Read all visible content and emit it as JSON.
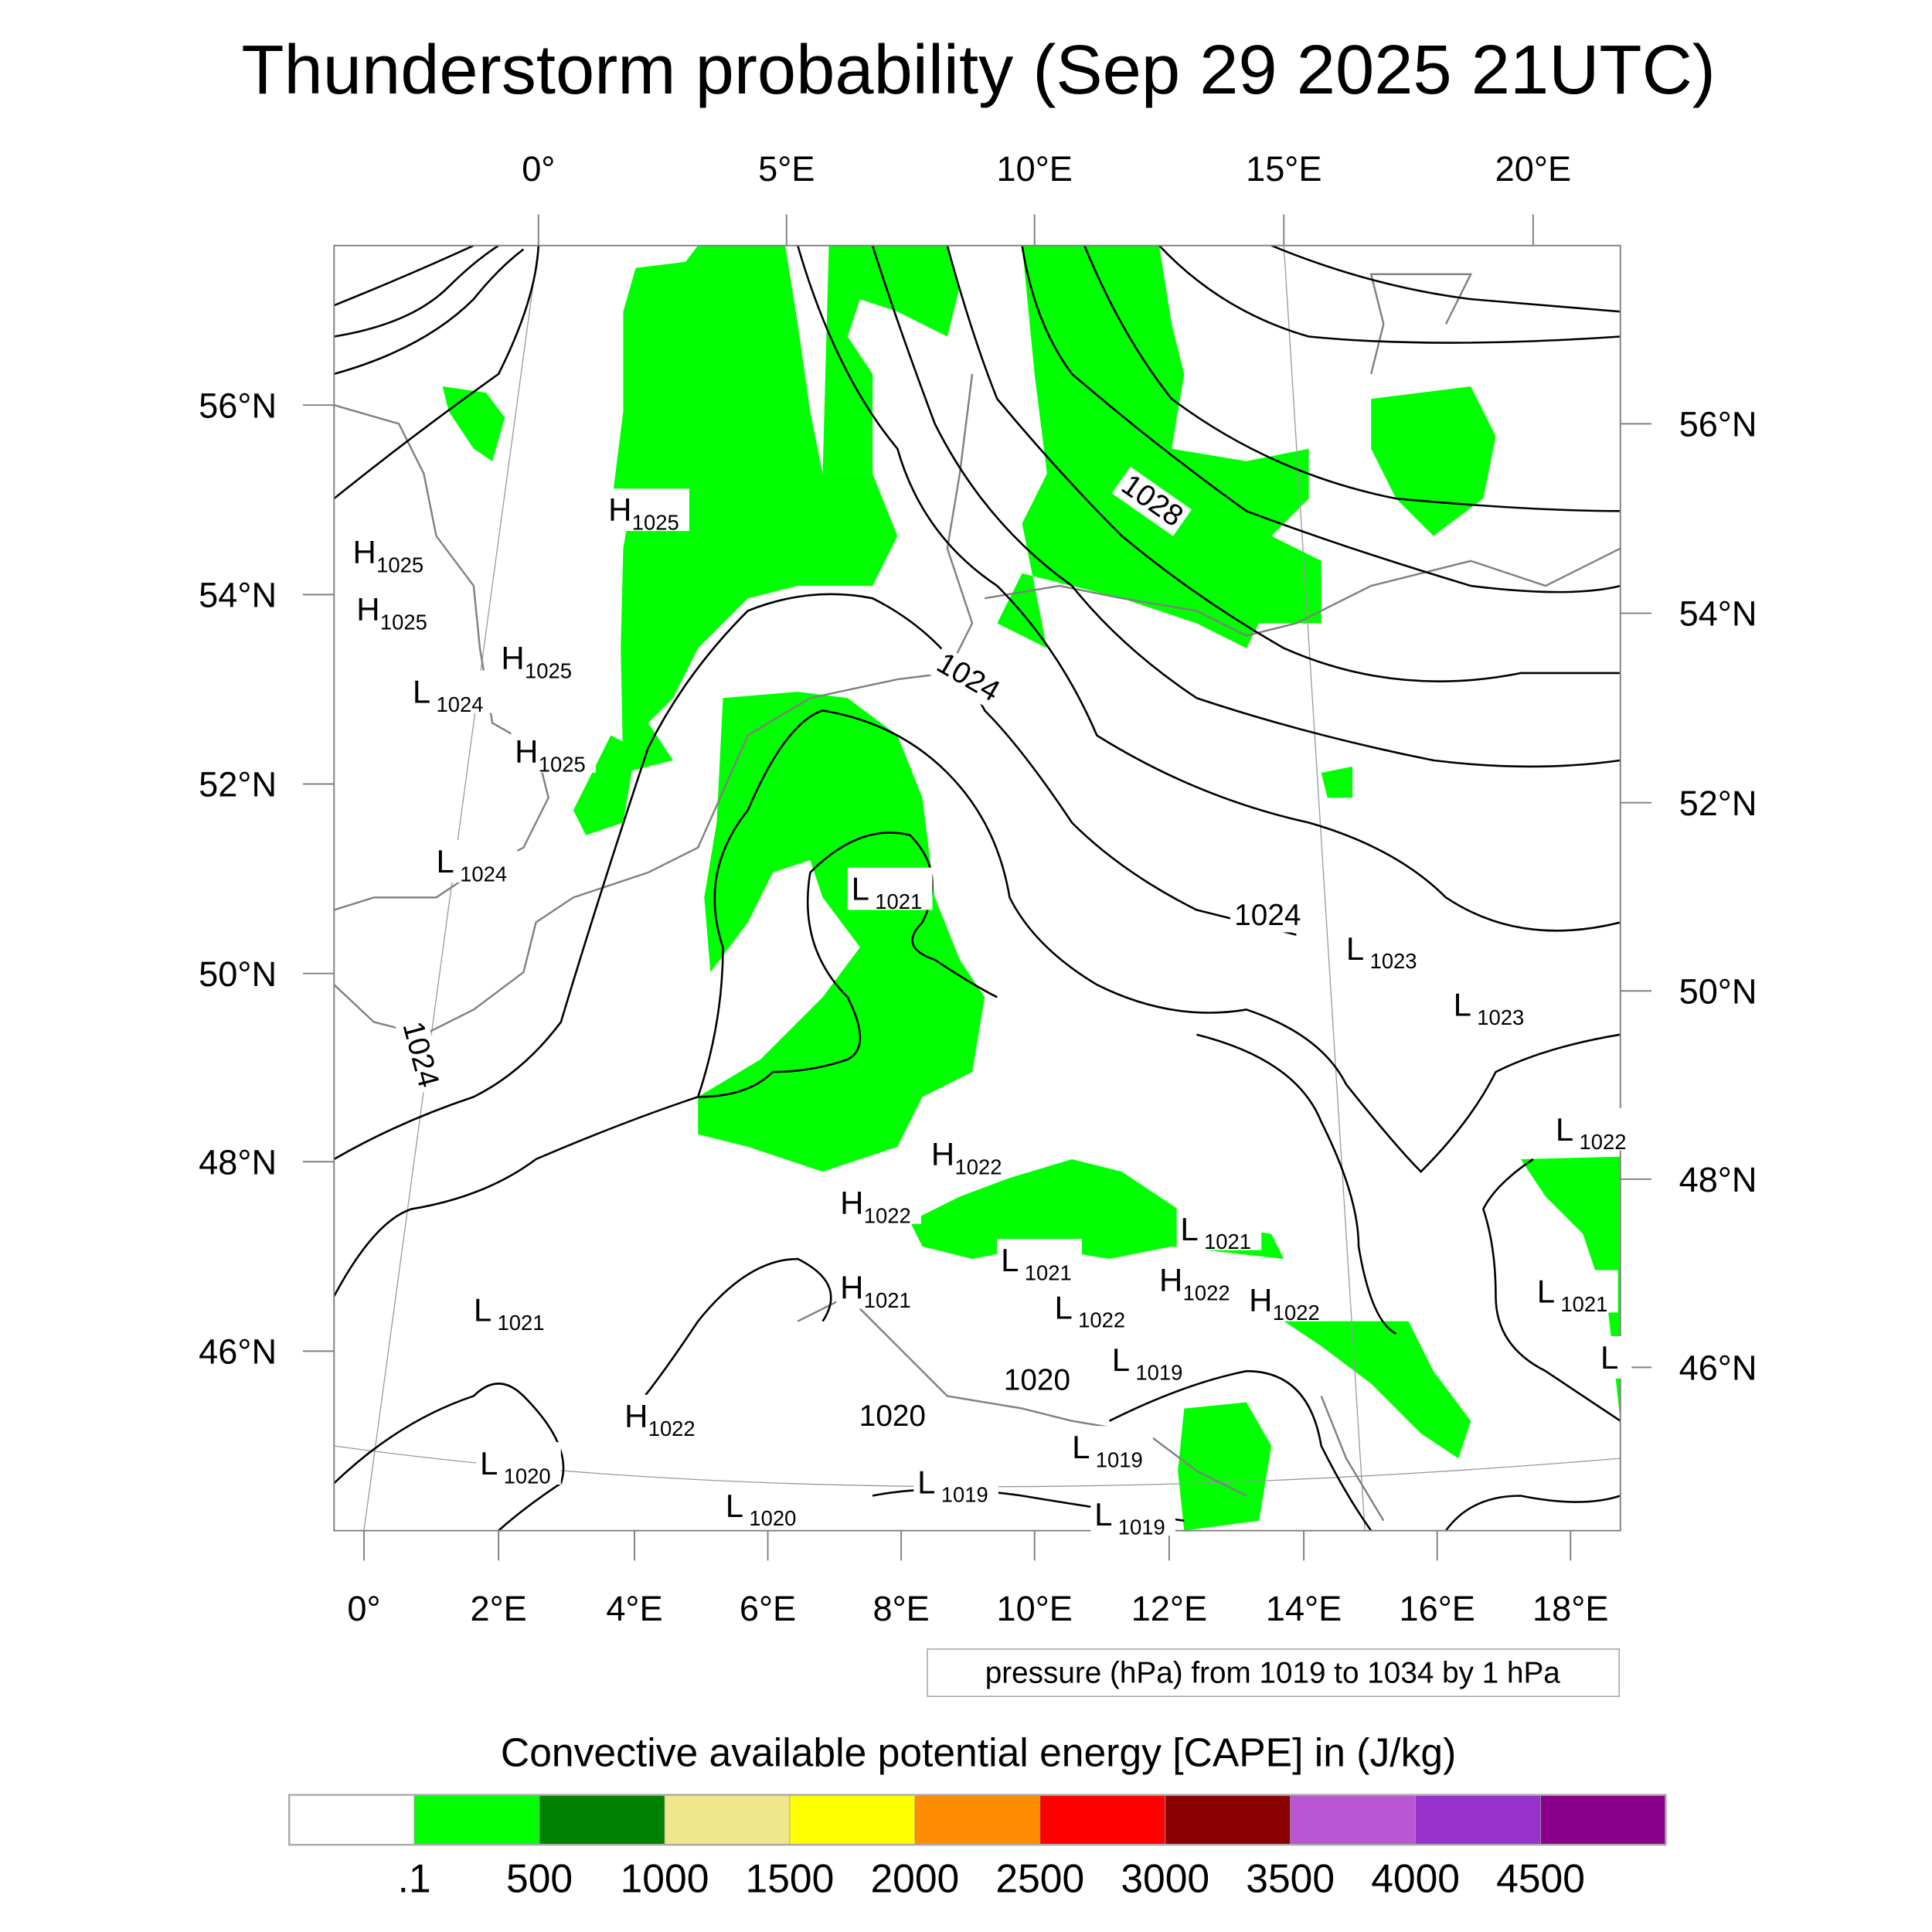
{
  "title": "Thunderstorm probability (Sep 29 2025 21UTC)",
  "axes": {
    "top": [
      "0°",
      "5°E",
      "10°E",
      "15°E",
      "20°E"
    ],
    "bottom": [
      "0°",
      "2°E",
      "4°E",
      "6°E",
      "8°E",
      "10°E",
      "12°E",
      "14°E",
      "16°E",
      "18°E"
    ],
    "left": [
      "56°N",
      "54°N",
      "52°N",
      "50°N",
      "48°N",
      "46°N"
    ],
    "right": [
      "56°N",
      "54°N",
      "52°N",
      "50°N",
      "48°N",
      "46°N"
    ]
  },
  "pressure_labels": [
    {
      "letter": "H",
      "value": "1025"
    },
    {
      "letter": "H",
      "value": "1025"
    },
    {
      "letter": "H",
      "value": "1025"
    },
    {
      "letter": "H",
      "value": "1025"
    },
    {
      "letter": "L",
      "value": "1024"
    },
    {
      "letter": "H",
      "value": "1025"
    },
    {
      "letter": "L",
      "value": "1024"
    },
    {
      "letter": "L",
      "value": "1021"
    },
    {
      "letter": "L",
      "value": "1023"
    },
    {
      "letter": "L",
      "value": "1023"
    },
    {
      "letter": "L",
      "value": "1022"
    },
    {
      "letter": "H",
      "value": "1022"
    },
    {
      "letter": "H",
      "value": "1022"
    },
    {
      "letter": "L",
      "value": "1021"
    },
    {
      "letter": "L",
      "value": "1021"
    },
    {
      "letter": "H",
      "value": "1021"
    },
    {
      "letter": "L",
      "value": "1022"
    },
    {
      "letter": "H",
      "value": "1022"
    },
    {
      "letter": "H",
      "value": "1022"
    },
    {
      "letter": "L",
      "value": "1021"
    },
    {
      "letter": "L",
      "value": "1021"
    },
    {
      "letter": "L",
      "value": "1019"
    },
    {
      "letter": "H",
      "value": "1022"
    },
    {
      "letter": "L",
      "value": "1020"
    },
    {
      "letter": "L",
      "value": "1019"
    },
    {
      "letter": "L",
      "value": "1019"
    },
    {
      "letter": "L",
      "value": "1020"
    },
    {
      "letter": "L",
      "value": "1019"
    },
    {
      "letter": "L",
      "value": ""
    }
  ],
  "contour_labels": [
    "1028",
    "1024",
    "1024",
    "1024",
    "1020",
    "1020"
  ],
  "contour_info": "pressure (hPa) from 1019 to 1034 by 1 hPa",
  "colorbar": {
    "title": "Convective available potential energy [CAPE] in (J/kg)",
    "labels": [
      ".1",
      "500",
      "1000",
      "1500",
      "2000",
      "2500",
      "3000",
      "3500",
      "4000",
      "4500"
    ],
    "colors": [
      "#ffffff",
      "#00ff00",
      "#008000",
      "#f0e68c",
      "#ffff00",
      "#ff8c00",
      "#ff0000",
      "#8b0000",
      "#ba55d3",
      "#9932cc",
      "#8b008b"
    ]
  },
  "cape_color": "#00ff00"
}
